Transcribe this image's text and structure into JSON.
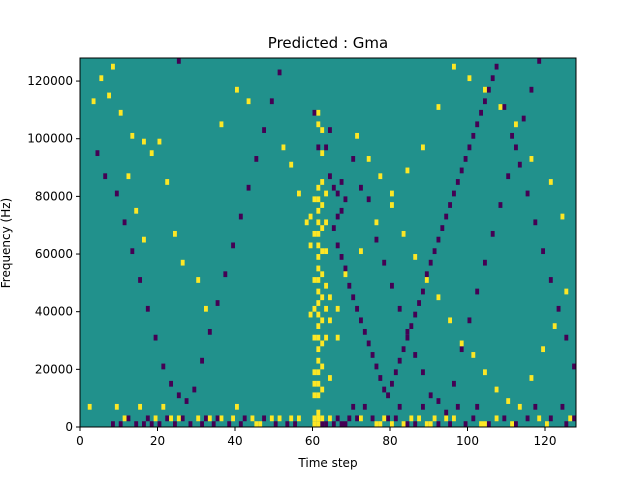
{
  "chart_data": {
    "type": "heatmap",
    "title": "Predicted : Gma",
    "xlabel": "Time step",
    "ylabel": "Frequency (Hz)",
    "xlim": [
      0,
      128
    ],
    "ylim": [
      0,
      128000
    ],
    "x_ticks": [
      0,
      20,
      40,
      60,
      80,
      100,
      120
    ],
    "y_ticks": [
      0,
      20000,
      40000,
      60000,
      80000,
      100000,
      120000
    ],
    "x_tick_labels": [
      "0",
      "20",
      "40",
      "60",
      "80",
      "100",
      "120"
    ],
    "y_tick_labels": [
      "0",
      "20000",
      "40000",
      "60000",
      "80000",
      "100000",
      "120000"
    ],
    "grid": false,
    "legend": "none",
    "cell_value_levels": [
      -1,
      0,
      1
    ],
    "colormap": {
      "low": "#440154",
      "mid": "#21918c",
      "high": "#fde725"
    },
    "background_level": 0,
    "cell_height_hz": 2000,
    "cells_high": [
      [
        60,
        0
      ],
      [
        60,
        2000
      ],
      [
        61,
        0
      ],
      [
        61,
        2000
      ],
      [
        61,
        4000
      ],
      [
        62,
        2000
      ],
      [
        60,
        10000
      ],
      [
        60,
        14000
      ],
      [
        60,
        18000
      ],
      [
        61,
        10000
      ],
      [
        61,
        14000
      ],
      [
        61,
        18000
      ],
      [
        61,
        22000
      ],
      [
        61,
        26000
      ],
      [
        61,
        30000
      ],
      [
        61,
        34000
      ],
      [
        61,
        38000
      ],
      [
        61,
        42000
      ],
      [
        61,
        46000
      ],
      [
        61,
        50000
      ],
      [
        61,
        54000
      ],
      [
        61,
        58000
      ],
      [
        61,
        62000
      ],
      [
        61,
        66000
      ],
      [
        61,
        70000
      ],
      [
        61,
        74000
      ],
      [
        61,
        78000
      ],
      [
        61,
        82000
      ],
      [
        61,
        104000
      ],
      [
        61,
        108000
      ],
      [
        62,
        12000
      ],
      [
        62,
        20000
      ],
      [
        62,
        28000
      ],
      [
        62,
        36000
      ],
      [
        62,
        44000
      ],
      [
        62,
        52000
      ],
      [
        62,
        60000
      ],
      [
        62,
        68000
      ],
      [
        62,
        76000
      ],
      [
        62,
        84000
      ],
      [
        62,
        94000
      ],
      [
        62,
        102000
      ],
      [
        63,
        30000
      ],
      [
        63,
        40000
      ],
      [
        63,
        48000
      ],
      [
        63,
        60000
      ],
      [
        63,
        70000
      ],
      [
        63,
        80000
      ],
      [
        64,
        36000
      ],
      [
        64,
        44000
      ],
      [
        60,
        30000
      ],
      [
        60,
        40000
      ],
      [
        60,
        50000
      ],
      [
        59,
        38000
      ],
      [
        59,
        62000
      ],
      [
        59,
        72000
      ],
      [
        60,
        66000
      ],
      [
        60,
        78000
      ],
      [
        64,
        2000
      ],
      [
        64,
        16000
      ],
      [
        2,
        6000
      ],
      [
        9,
        6000
      ],
      [
        11,
        2000
      ],
      [
        15,
        6000
      ],
      [
        19,
        2000
      ],
      [
        21,
        6000
      ],
      [
        23,
        2000
      ],
      [
        25,
        2000
      ],
      [
        30,
        2000
      ],
      [
        33,
        2000
      ],
      [
        36,
        2000
      ],
      [
        39,
        2000
      ],
      [
        40,
        6000
      ],
      [
        44,
        2000
      ],
      [
        45,
        0
      ],
      [
        46,
        0
      ],
      [
        49,
        2000
      ],
      [
        51,
        2000
      ],
      [
        54,
        2000
      ],
      [
        56,
        2000
      ],
      [
        72,
        2000
      ],
      [
        76,
        0
      ],
      [
        77,
        0
      ],
      [
        78,
        2000
      ],
      [
        80,
        0
      ],
      [
        83,
        0
      ],
      [
        85,
        2000
      ],
      [
        87,
        2000
      ],
      [
        89,
        0
      ],
      [
        90,
        0
      ],
      [
        91,
        2000
      ],
      [
        94,
        2000
      ],
      [
        96,
        2000
      ],
      [
        103,
        0
      ],
      [
        104,
        0
      ],
      [
        107,
        2000
      ],
      [
        111,
        0
      ],
      [
        118,
        2000
      ],
      [
        120,
        0
      ],
      [
        126,
        2000
      ],
      [
        5,
        120000
      ],
      [
        8,
        124000
      ],
      [
        3,
        112000
      ],
      [
        7,
        114000
      ],
      [
        10,
        108000
      ],
      [
        13,
        100000
      ],
      [
        16,
        98000
      ],
      [
        20,
        98000
      ],
      [
        18,
        94000
      ],
      [
        12,
        86000
      ],
      [
        22,
        84000
      ],
      [
        14,
        74000
      ],
      [
        16,
        64000
      ],
      [
        24,
        66000
      ],
      [
        26,
        56000
      ],
      [
        30,
        50000
      ],
      [
        32,
        40000
      ],
      [
        36,
        104000
      ],
      [
        40,
        116000
      ],
      [
        43,
        112000
      ],
      [
        52,
        96000
      ],
      [
        54,
        90000
      ],
      [
        56,
        80000
      ],
      [
        58,
        70000
      ],
      [
        71,
        100000
      ],
      [
        74,
        92000
      ],
      [
        77,
        86000
      ],
      [
        80,
        76000
      ],
      [
        83,
        66000
      ],
      [
        86,
        58000
      ],
      [
        89,
        50000
      ],
      [
        92,
        44000
      ],
      [
        95,
        36000
      ],
      [
        98,
        28000
      ],
      [
        101,
        24000
      ],
      [
        104,
        18000
      ],
      [
        107,
        12000
      ],
      [
        110,
        8000
      ],
      [
        113,
        6000
      ],
      [
        116,
        16000
      ],
      [
        119,
        26000
      ],
      [
        122,
        34000
      ],
      [
        125,
        46000
      ],
      [
        124,
        72000
      ],
      [
        121,
        84000
      ],
      [
        116,
        92000
      ],
      [
        112,
        104000
      ],
      [
        108,
        110000
      ],
      [
        104,
        116000
      ],
      [
        100,
        120000
      ],
      [
        96,
        124000
      ],
      [
        92,
        110000
      ],
      [
        88,
        96000
      ],
      [
        84,
        88000
      ],
      [
        80,
        80000
      ],
      [
        76,
        70000
      ],
      [
        72,
        60000
      ],
      [
        68,
        52000
      ],
      [
        66,
        40000
      ],
      [
        66,
        30000
      ]
    ],
    "cells_low": [
      [
        62,
        0
      ],
      [
        63,
        0
      ],
      [
        65,
        0
      ],
      [
        66,
        2000
      ],
      [
        67,
        0
      ],
      [
        68,
        0
      ],
      [
        69,
        2000
      ],
      [
        70,
        6000
      ],
      [
        71,
        2000
      ],
      [
        73,
        6000
      ],
      [
        75,
        2000
      ],
      [
        79,
        2000
      ],
      [
        81,
        2000
      ],
      [
        82,
        6000
      ],
      [
        84,
        0
      ],
      [
        86,
        0
      ],
      [
        88,
        6000
      ],
      [
        92,
        0
      ],
      [
        95,
        0
      ],
      [
        97,
        6000
      ],
      [
        99,
        0
      ],
      [
        101,
        2000
      ],
      [
        102,
        6000
      ],
      [
        105,
        0
      ],
      [
        109,
        2000
      ],
      [
        112,
        0
      ],
      [
        115,
        2000
      ],
      [
        117,
        6000
      ],
      [
        121,
        2000
      ],
      [
        124,
        6000
      ],
      [
        125,
        0
      ],
      [
        127,
        2000
      ],
      [
        8,
        0
      ],
      [
        10,
        0
      ],
      [
        12,
        2000
      ],
      [
        14,
        0
      ],
      [
        16,
        0
      ],
      [
        17,
        2000
      ],
      [
        18,
        0
      ],
      [
        20,
        0
      ],
      [
        22,
        2000
      ],
      [
        24,
        0
      ],
      [
        26,
        2000
      ],
      [
        28,
        0
      ],
      [
        31,
        0
      ],
      [
        32,
        2000
      ],
      [
        34,
        0
      ],
      [
        35,
        2000
      ],
      [
        38,
        0
      ],
      [
        41,
        0
      ],
      [
        42,
        2000
      ],
      [
        47,
        2000
      ],
      [
        50,
        0
      ],
      [
        53,
        0
      ],
      [
        55,
        0
      ],
      [
        64,
        86000
      ],
      [
        65,
        82000
      ],
      [
        66,
        80000
      ],
      [
        67,
        84000
      ],
      [
        68,
        78000
      ],
      [
        67,
        74000
      ],
      [
        66,
        72000
      ],
      [
        65,
        68000
      ],
      [
        66,
        62000
      ],
      [
        67,
        58000
      ],
      [
        68,
        54000
      ],
      [
        69,
        48000
      ],
      [
        70,
        44000
      ],
      [
        71,
        40000
      ],
      [
        72,
        36000
      ],
      [
        73,
        32000
      ],
      [
        74,
        28000
      ],
      [
        75,
        24000
      ],
      [
        76,
        20000
      ],
      [
        77,
        16000
      ],
      [
        78,
        12000
      ],
      [
        79,
        10000
      ],
      [
        80,
        14000
      ],
      [
        81,
        18000
      ],
      [
        82,
        22000
      ],
      [
        83,
        26000
      ],
      [
        84,
        30000
      ],
      [
        85,
        34000
      ],
      [
        86,
        38000
      ],
      [
        87,
        42000
      ],
      [
        88,
        46000
      ],
      [
        89,
        52000
      ],
      [
        90,
        56000
      ],
      [
        91,
        60000
      ],
      [
        92,
        64000
      ],
      [
        93,
        68000
      ],
      [
        94,
        72000
      ],
      [
        95,
        76000
      ],
      [
        96,
        80000
      ],
      [
        97,
        84000
      ],
      [
        98,
        88000
      ],
      [
        99,
        92000
      ],
      [
        100,
        96000
      ],
      [
        101,
        100000
      ],
      [
        102,
        104000
      ],
      [
        103,
        108000
      ],
      [
        104,
        112000
      ],
      [
        105,
        116000
      ],
      [
        106,
        120000
      ],
      [
        107,
        124000
      ],
      [
        109,
        110000
      ],
      [
        111,
        100000
      ],
      [
        113,
        90000
      ],
      [
        115,
        80000
      ],
      [
        117,
        70000
      ],
      [
        119,
        60000
      ],
      [
        121,
        50000
      ],
      [
        123,
        40000
      ],
      [
        125,
        30000
      ],
      [
        127,
        20000
      ],
      [
        4,
        94000
      ],
      [
        6,
        86000
      ],
      [
        9,
        80000
      ],
      [
        11,
        70000
      ],
      [
        13,
        60000
      ],
      [
        15,
        50000
      ],
      [
        17,
        40000
      ],
      [
        19,
        30000
      ],
      [
        21,
        20000
      ],
      [
        23,
        14000
      ],
      [
        25,
        10000
      ],
      [
        27,
        8000
      ],
      [
        29,
        12000
      ],
      [
        31,
        22000
      ],
      [
        33,
        32000
      ],
      [
        35,
        42000
      ],
      [
        37,
        52000
      ],
      [
        39,
        62000
      ],
      [
        41,
        72000
      ],
      [
        43,
        82000
      ],
      [
        45,
        92000
      ],
      [
        47,
        102000
      ],
      [
        49,
        112000
      ],
      [
        51,
        122000
      ],
      [
        25,
        126000
      ],
      [
        70,
        92000
      ],
      [
        72,
        82000
      ],
      [
        74,
        78000
      ],
      [
        76,
        64000
      ],
      [
        78,
        56000
      ],
      [
        80,
        48000
      ],
      [
        82,
        40000
      ],
      [
        84,
        32000
      ],
      [
        86,
        24000
      ],
      [
        88,
        18000
      ],
      [
        90,
        10000
      ],
      [
        92,
        8000
      ],
      [
        94,
        4000
      ],
      [
        96,
        14000
      ],
      [
        98,
        26000
      ],
      [
        100,
        36000
      ],
      [
        102,
        46000
      ],
      [
        104,
        56000
      ],
      [
        106,
        66000
      ],
      [
        108,
        76000
      ],
      [
        110,
        86000
      ],
      [
        112,
        96000
      ],
      [
        114,
        106000
      ],
      [
        116,
        116000
      ],
      [
        118,
        126000
      ],
      [
        60,
        108000
      ],
      [
        61,
        96000
      ],
      [
        63,
        96000
      ],
      [
        64,
        102000
      ]
    ]
  }
}
